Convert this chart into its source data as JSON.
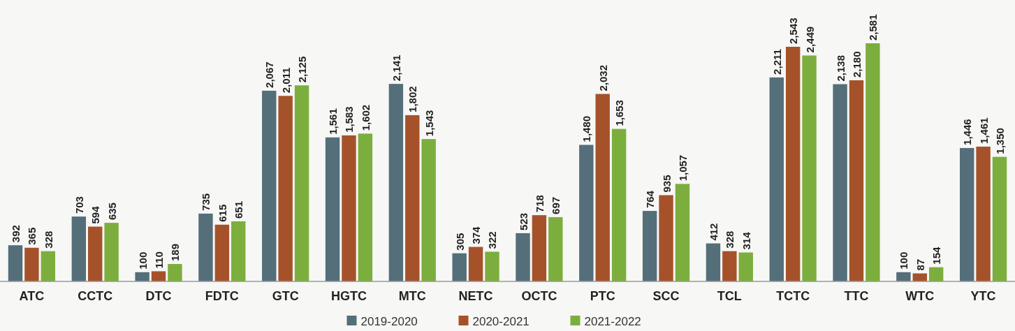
{
  "chart_data": {
    "type": "bar",
    "categories": [
      "ATC",
      "CCTC",
      "DTC",
      "FDTC",
      "GTC",
      "HGTC",
      "MTC",
      "NETC",
      "OCTC",
      "PTC",
      "SCC",
      "TCL",
      "TCTC",
      "TTC",
      "WTC",
      "YTC"
    ],
    "series": [
      {
        "name": "2019-2020",
        "color": "#546e7a",
        "values": [
          392,
          703,
          100,
          735,
          2067,
          1561,
          2141,
          305,
          523,
          1480,
          764,
          412,
          2211,
          2138,
          100,
          1446
        ],
        "value_labels": [
          "392",
          "703",
          "100",
          "735",
          "2,067",
          "1,561",
          "2,141",
          "305",
          "523",
          "1,480",
          "764",
          "412",
          "2,211",
          "2,138",
          "100",
          "1,446"
        ]
      },
      {
        "name": "2020-2021",
        "color": "#a5522a",
        "values": [
          365,
          594,
          110,
          615,
          2011,
          1583,
          1802,
          374,
          718,
          2032,
          935,
          328,
          2543,
          2180,
          87,
          1461
        ],
        "value_labels": [
          "365",
          "594",
          "110",
          "615",
          "2,011",
          "1,583",
          "1,802",
          "374",
          "718",
          "2,032",
          "935",
          "328",
          "2,543",
          "2,180",
          "87",
          "1,461"
        ]
      },
      {
        "name": "2021-2022",
        "color": "#7cae3e",
        "values": [
          328,
          635,
          189,
          651,
          2125,
          1602,
          1543,
          322,
          697,
          1653,
          1057,
          314,
          2449,
          2581,
          154,
          1350
        ],
        "value_labels": [
          "328",
          "635",
          "189",
          "651",
          "2,125",
          "1,602",
          "1,543",
          "322",
          "697",
          "1,653",
          "1,057",
          "314",
          "2,449",
          "2,581",
          "154",
          "1,350"
        ]
      }
    ],
    "legend": "bottom"
  }
}
